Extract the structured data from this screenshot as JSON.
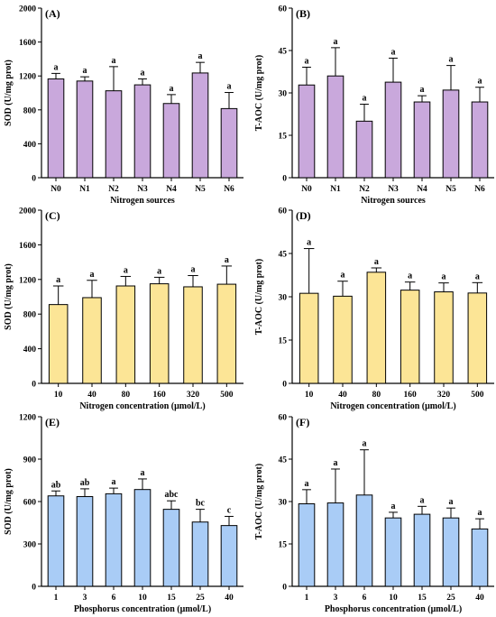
{
  "chart_data": [
    {
      "type": "bar",
      "label": "(A)",
      "categories": [
        "N0",
        "N1",
        "N2",
        "N3",
        "N4",
        "N5",
        "N6"
      ],
      "values": [
        1165,
        1140,
        1025,
        1095,
        875,
        1235,
        815
      ],
      "errors": [
        65,
        50,
        285,
        70,
        105,
        125,
        190
      ],
      "significance": [
        "a",
        "a",
        "a",
        "a",
        "a",
        "a",
        "a"
      ],
      "ylim": [
        0,
        2000
      ],
      "yticks": [
        0,
        400,
        800,
        1200,
        1600,
        2000
      ],
      "xlabel": "Nitrogen sources",
      "ylabel": "SOD (U/mg prot)",
      "color": "#C9A8DC"
    },
    {
      "type": "bar",
      "label": "(B)",
      "categories": [
        "N0",
        "N1",
        "N2",
        "N3",
        "N4",
        "N5",
        "N6"
      ],
      "values": [
        32.8,
        36.0,
        20.0,
        33.8,
        26.8,
        31.0,
        26.8
      ],
      "errors": [
        6.3,
        10.0,
        6.0,
        8.5,
        2.2,
        8.7,
        5.2
      ],
      "significance": [
        "a",
        "a",
        "a",
        "a",
        "a",
        "a",
        "a"
      ],
      "ylim": [
        0,
        60
      ],
      "yticks": [
        0,
        15,
        30,
        45,
        60
      ],
      "xlabel": "Nitrogen sources",
      "ylabel": "T-AOC (U/mg prot)",
      "color": "#C9A8DC"
    },
    {
      "type": "bar",
      "label": "(C)",
      "categories": [
        "10",
        "40",
        "80",
        "160",
        "320",
        "500"
      ],
      "values": [
        910,
        990,
        1125,
        1150,
        1115,
        1145
      ],
      "errors": [
        215,
        200,
        110,
        75,
        130,
        210
      ],
      "significance": [
        "a",
        "a",
        "a",
        "a",
        "a",
        "a"
      ],
      "ylim": [
        0,
        2000
      ],
      "yticks": [
        0,
        400,
        800,
        1200,
        1600,
        2000
      ],
      "xlabel": "Nitrogen concentration (μmol/L)",
      "ylabel": "SOD (U/mg prot)",
      "color": "#FCE596"
    },
    {
      "type": "bar",
      "label": "(D)",
      "categories": [
        "10",
        "40",
        "80",
        "160",
        "320",
        "500"
      ],
      "values": [
        31.2,
        30.2,
        38.5,
        32.3,
        31.7,
        31.3
      ],
      "errors": [
        15.5,
        5.2,
        1.5,
        2.8,
        3.1,
        3.6
      ],
      "significance": [
        "a",
        "a",
        "a",
        "a",
        "a",
        "a"
      ],
      "ylim": [
        0,
        60
      ],
      "yticks": [
        0,
        15,
        30,
        45,
        60
      ],
      "xlabel": "Nitrogen concentration (μmol/L)",
      "ylabel": "T-AOC (U/mg prot)",
      "color": "#FCE596"
    },
    {
      "type": "bar",
      "label": "(E)",
      "categories": [
        "1",
        "3",
        "6",
        "10",
        "15",
        "25",
        "40"
      ],
      "values": [
        640,
        635,
        655,
        685,
        545,
        455,
        430
      ],
      "errors": [
        35,
        55,
        40,
        75,
        60,
        90,
        65
      ],
      "significance": [
        "ab",
        "ab",
        "a",
        "a",
        "abc",
        "bc",
        "c"
      ],
      "ylim": [
        0,
        1200
      ],
      "yticks": [
        0,
        300,
        600,
        900,
        1200
      ],
      "xlabel": "Phosphorus concentration (μmol/L)",
      "ylabel": "SOD (U/mg prot)",
      "color": "#A9CCF6"
    },
    {
      "type": "bar",
      "label": "(F)",
      "categories": [
        "1",
        "3",
        "6",
        "10",
        "15",
        "25",
        "40"
      ],
      "values": [
        29.2,
        29.5,
        32.3,
        24.2,
        25.5,
        24.2,
        20.3
      ],
      "errors": [
        5.0,
        12.0,
        16.0,
        2.0,
        2.8,
        3.5,
        3.6
      ],
      "significance": [
        "a",
        "a",
        "a",
        "a",
        "a",
        "a",
        "a"
      ],
      "ylim": [
        0,
        60
      ],
      "yticks": [
        0,
        15,
        30,
        45,
        60
      ],
      "xlabel": "Phosphorus concentration (μmol/L)",
      "ylabel": "T-AOC (U/mg prot)",
      "color": "#A9CCF6"
    }
  ]
}
